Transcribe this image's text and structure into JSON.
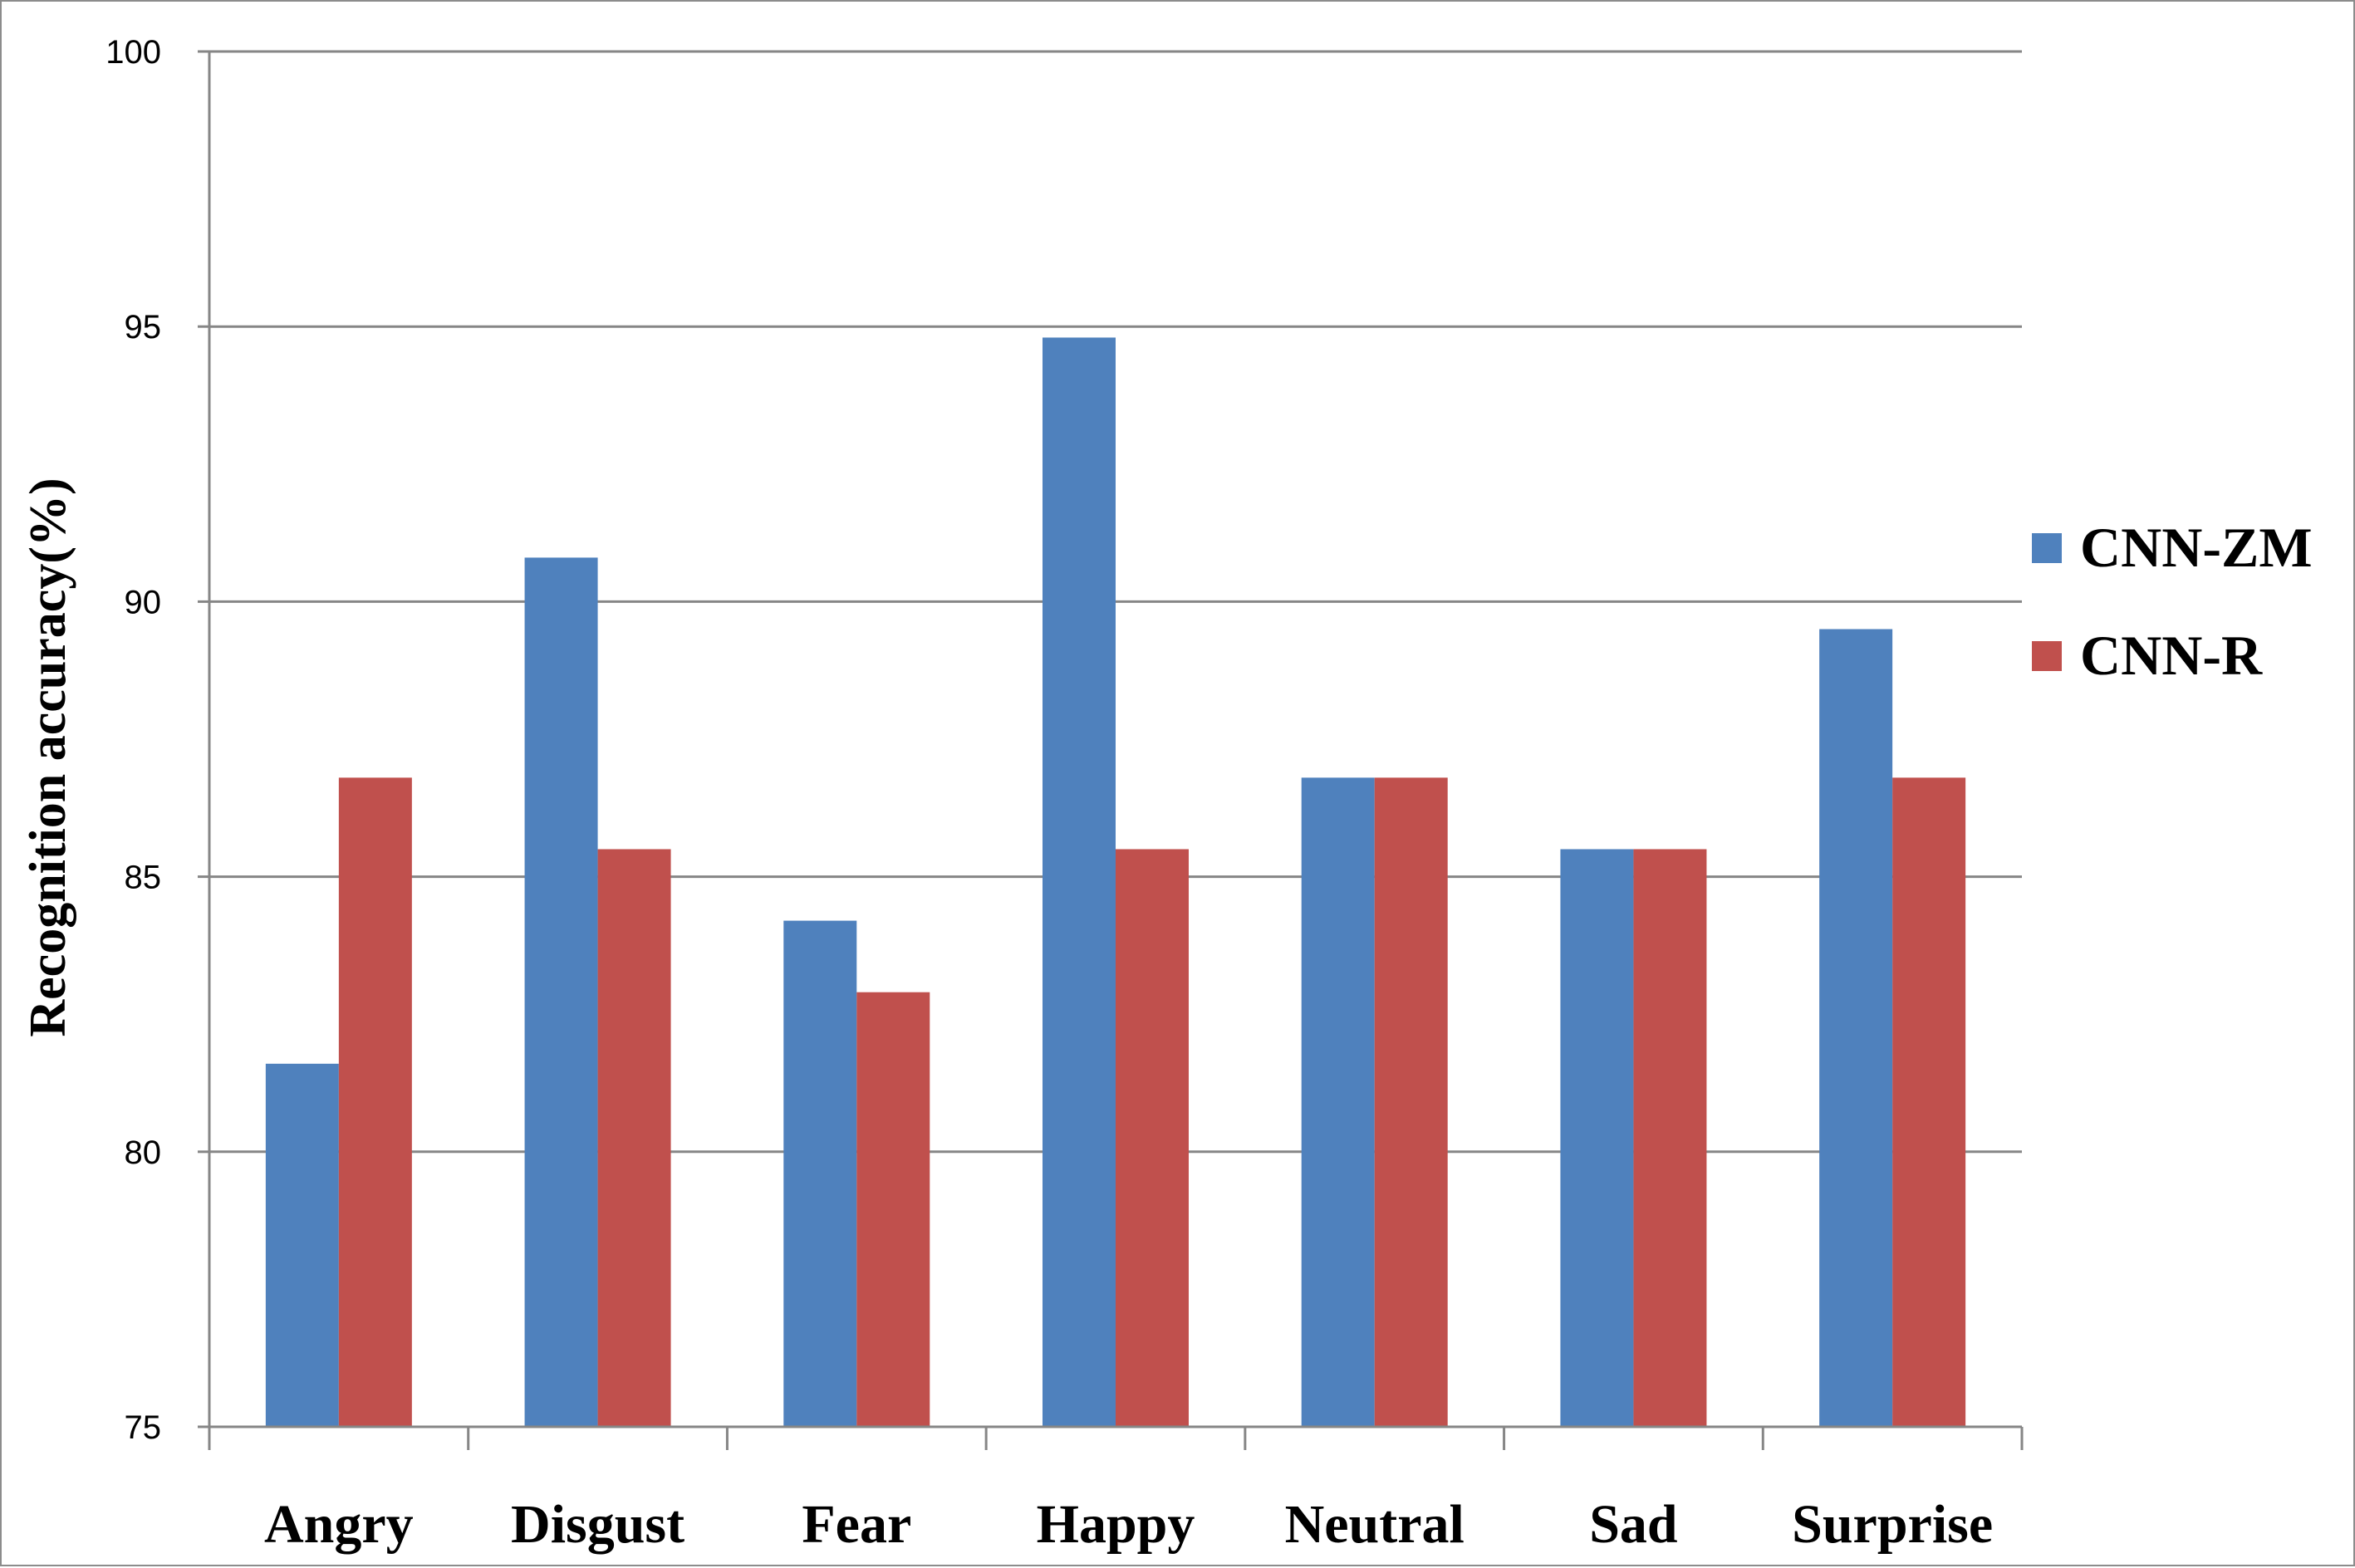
{
  "chart_data": {
    "type": "bar",
    "title": "",
    "xlabel": "",
    "ylabel": "Recognition accuracy(%)",
    "ylim": [
      75,
      100
    ],
    "yticks": [
      75,
      80,
      85,
      90,
      95,
      100
    ],
    "grid": true,
    "legend_position": "right",
    "categories": [
      "Angry",
      "Disgust",
      "Fear",
      "Happy",
      "Neutral",
      "Sad",
      "Surprise"
    ],
    "series": [
      {
        "name": "CNN-ZM",
        "color": "#4f81bd",
        "values": [
          81.6,
          90.8,
          84.2,
          94.8,
          86.8,
          85.5,
          89.5
        ]
      },
      {
        "name": "CNN-R",
        "color": "#c0504d",
        "values": [
          86.8,
          85.5,
          82.9,
          85.5,
          86.8,
          85.5,
          86.8
        ]
      }
    ]
  }
}
